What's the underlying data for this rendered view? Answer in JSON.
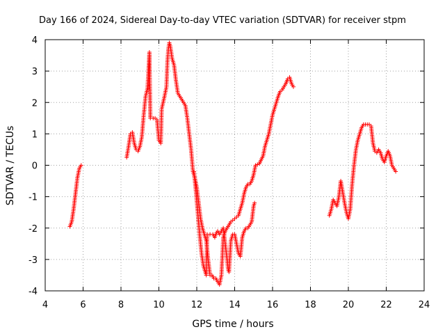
{
  "chart_data": {
    "type": "scatter",
    "title": "Day 166 of 2024, Sidereal Day-to-day VTEC variation (SDTVAR) for receiver stpm",
    "xlabel": "GPS time / hours",
    "ylabel": "SDTVAR / TECUs",
    "xlim": [
      4,
      24
    ],
    "ylim": [
      -4,
      4
    ],
    "xticks": [
      "4",
      "6",
      "8",
      "10",
      "12",
      "14",
      "16",
      "18",
      "20",
      "22",
      "24"
    ],
    "yticks": [
      "4",
      "3",
      "2",
      "1",
      "0",
      "-1",
      "-2",
      "-3",
      "-4"
    ],
    "grid": true,
    "marker": "plus",
    "color": "#ff0000",
    "series": [
      {
        "name": "segment-1",
        "points": [
          [
            5.3,
            -1.95
          ],
          [
            5.4,
            -1.8
          ],
          [
            5.5,
            -1.4
          ],
          [
            5.6,
            -0.9
          ],
          [
            5.7,
            -0.4
          ],
          [
            5.8,
            -0.1
          ],
          [
            5.9,
            0.0
          ]
        ]
      },
      {
        "name": "segment-2",
        "points": [
          [
            8.3,
            0.25
          ],
          [
            8.4,
            0.6
          ],
          [
            8.5,
            1.0
          ],
          [
            8.6,
            1.05
          ],
          [
            8.7,
            0.7
          ],
          [
            8.8,
            0.5
          ],
          [
            8.9,
            0.45
          ],
          [
            9.0,
            0.6
          ],
          [
            9.1,
            0.9
          ],
          [
            9.2,
            1.6
          ],
          [
            9.3,
            2.2
          ],
          [
            9.4,
            2.45
          ],
          [
            9.45,
            3.0
          ],
          [
            9.5,
            3.6
          ],
          [
            9.55,
            1.5
          ],
          [
            9.7,
            1.5
          ],
          [
            9.8,
            1.5
          ],
          [
            9.9,
            1.45
          ],
          [
            10.0,
            0.8
          ],
          [
            10.1,
            0.7
          ],
          [
            10.15,
            1.8
          ],
          [
            10.3,
            2.2
          ],
          [
            10.4,
            2.5
          ],
          [
            10.45,
            3.3
          ],
          [
            10.5,
            3.7
          ],
          [
            10.55,
            3.9
          ],
          [
            10.6,
            3.8
          ],
          [
            10.7,
            3.4
          ],
          [
            10.8,
            3.2
          ],
          [
            10.9,
            2.7
          ],
          [
            11.0,
            2.3
          ],
          [
            11.1,
            2.2
          ],
          [
            11.2,
            2.1
          ],
          [
            11.3,
            2.0
          ],
          [
            11.4,
            1.9
          ],
          [
            11.5,
            1.5
          ],
          [
            11.6,
            1.0
          ],
          [
            11.7,
            0.5
          ],
          [
            11.8,
            -0.2
          ],
          [
            11.9,
            -0.4
          ],
          [
            12.0,
            -0.7
          ],
          [
            12.1,
            -1.2
          ],
          [
            12.2,
            -1.7
          ],
          [
            12.3,
            -2.0
          ],
          [
            12.4,
            -2.2
          ],
          [
            12.5,
            -2.4
          ],
          [
            12.6,
            -3.0
          ],
          [
            12.7,
            -3.5
          ],
          [
            12.8,
            -3.5
          ],
          [
            12.9,
            -3.6
          ],
          [
            13.0,
            -3.6
          ],
          [
            13.1,
            -3.7
          ],
          [
            13.2,
            -3.8
          ],
          [
            13.3,
            -3.5
          ],
          [
            13.4,
            -2.3
          ],
          [
            13.5,
            -2.1
          ],
          [
            13.6,
            -2.0
          ],
          [
            13.7,
            -1.9
          ],
          [
            13.8,
            -1.8
          ],
          [
            13.9,
            -1.75
          ],
          [
            14.0,
            -1.7
          ],
          [
            14.1,
            -1.65
          ],
          [
            14.2,
            -1.6
          ],
          [
            14.3,
            -1.4
          ],
          [
            14.4,
            -1.2
          ],
          [
            14.5,
            -0.9
          ],
          [
            14.6,
            -0.7
          ],
          [
            14.7,
            -0.6
          ],
          [
            14.8,
            -0.6
          ],
          [
            14.9,
            -0.5
          ],
          [
            15.0,
            -0.3
          ],
          [
            15.1,
            0.0
          ],
          [
            15.3,
            0.05
          ],
          [
            15.5,
            0.3
          ],
          [
            15.6,
            0.6
          ],
          [
            15.7,
            0.8
          ],
          [
            15.8,
            1.0
          ],
          [
            15.9,
            1.3
          ],
          [
            16.0,
            1.6
          ],
          [
            16.1,
            1.8
          ],
          [
            16.2,
            2.0
          ],
          [
            16.3,
            2.2
          ],
          [
            16.4,
            2.35
          ],
          [
            16.5,
            2.4
          ],
          [
            16.6,
            2.5
          ],
          [
            16.7,
            2.6
          ],
          [
            16.8,
            2.75
          ],
          [
            16.9,
            2.8
          ],
          [
            17.0,
            2.6
          ],
          [
            17.1,
            2.5
          ]
        ]
      },
      {
        "name": "segment-3",
        "points": [
          [
            11.85,
            -0.2
          ],
          [
            11.95,
            -0.8
          ],
          [
            12.05,
            -1.5
          ],
          [
            12.15,
            -2.2
          ],
          [
            12.25,
            -2.8
          ],
          [
            12.35,
            -3.2
          ],
          [
            12.45,
            -3.4
          ],
          [
            12.5,
            -3.5
          ],
          [
            12.55,
            -2.2
          ],
          [
            12.7,
            -2.2
          ],
          [
            12.85,
            -2.2
          ],
          [
            12.95,
            -2.3
          ],
          [
            13.0,
            -2.2
          ],
          [
            13.1,
            -2.1
          ],
          [
            13.2,
            -2.2
          ],
          [
            13.3,
            -2.1
          ],
          [
            13.4,
            -2.0
          ],
          [
            13.5,
            -2.5
          ],
          [
            13.6,
            -3.0
          ],
          [
            13.65,
            -3.3
          ],
          [
            13.7,
            -3.4
          ],
          [
            13.8,
            -2.4
          ],
          [
            13.9,
            -2.2
          ],
          [
            14.0,
            -2.2
          ],
          [
            14.1,
            -2.5
          ],
          [
            14.2,
            -2.8
          ],
          [
            14.3,
            -2.9
          ],
          [
            14.4,
            -2.3
          ],
          [
            14.5,
            -2.1
          ],
          [
            14.6,
            -2.0
          ],
          [
            14.7,
            -2.0
          ],
          [
            14.8,
            -1.9
          ],
          [
            14.9,
            -1.8
          ],
          [
            15.0,
            -1.3
          ],
          [
            15.05,
            -1.2
          ]
        ]
      },
      {
        "name": "segment-4",
        "points": [
          [
            19.0,
            -1.6
          ],
          [
            19.1,
            -1.4
          ],
          [
            19.2,
            -1.1
          ],
          [
            19.3,
            -1.2
          ],
          [
            19.4,
            -1.3
          ],
          [
            19.5,
            -1.0
          ],
          [
            19.6,
            -0.5
          ],
          [
            19.8,
            -1.2
          ],
          [
            19.9,
            -1.5
          ],
          [
            20.0,
            -1.7
          ],
          [
            20.1,
            -1.4
          ],
          [
            20.2,
            -0.6
          ],
          [
            20.3,
            0.0
          ],
          [
            20.4,
            0.5
          ],
          [
            20.5,
            0.8
          ],
          [
            20.6,
            1.0
          ],
          [
            20.7,
            1.2
          ],
          [
            20.8,
            1.3
          ],
          [
            20.9,
            1.3
          ],
          [
            21.0,
            1.3
          ],
          [
            21.1,
            1.3
          ],
          [
            21.2,
            1.25
          ],
          [
            21.3,
            0.7
          ],
          [
            21.4,
            0.45
          ],
          [
            21.5,
            0.4
          ],
          [
            21.6,
            0.5
          ],
          [
            21.7,
            0.4
          ],
          [
            21.8,
            0.2
          ],
          [
            21.9,
            0.1
          ],
          [
            22.0,
            0.3
          ],
          [
            22.1,
            0.45
          ],
          [
            22.2,
            0.3
          ],
          [
            22.3,
            0.0
          ],
          [
            22.4,
            -0.1
          ],
          [
            22.5,
            -0.2
          ]
        ]
      }
    ]
  }
}
